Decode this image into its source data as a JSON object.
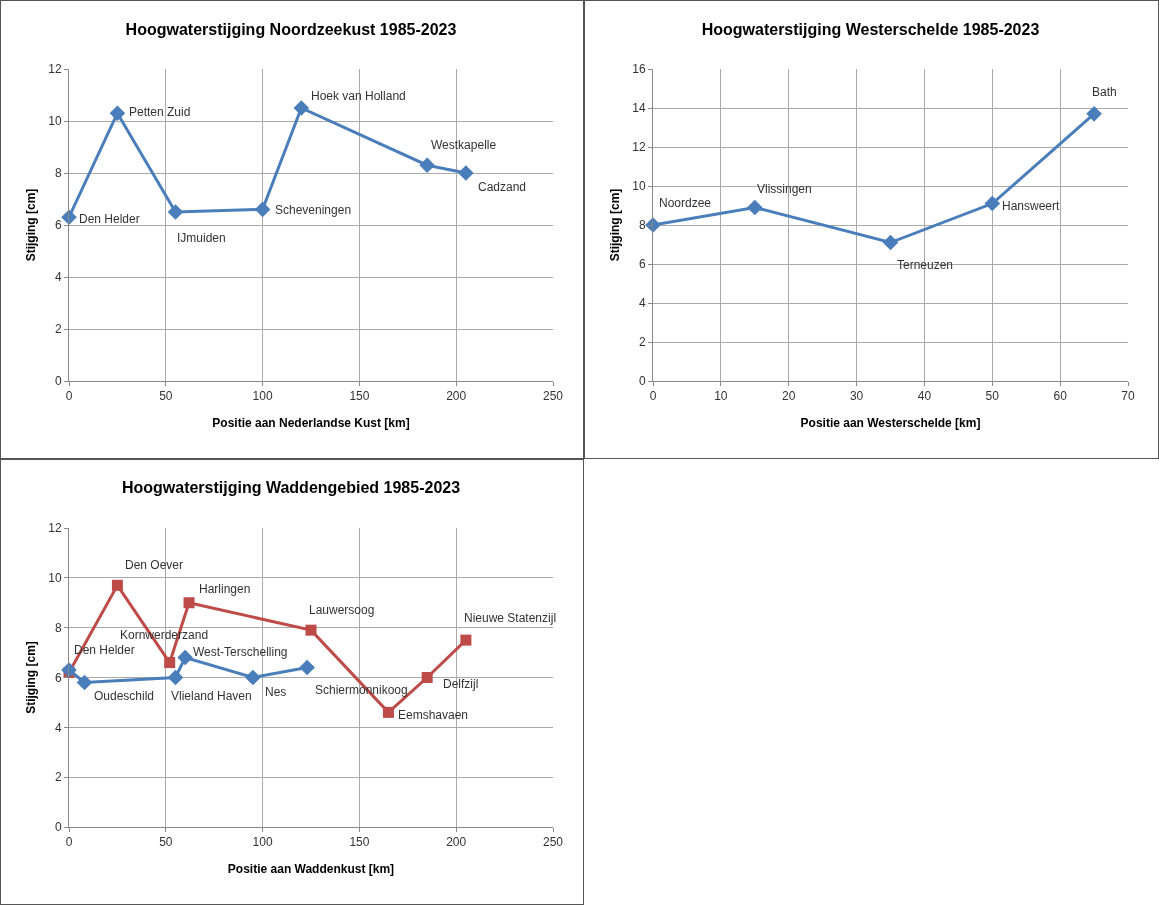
{
  "chart_data": [
    {
      "type": "line",
      "title": "Hoogwaterstijging Noordzeekust 1985-2023",
      "xlabel": "Positie aan Nederlandse Kust [km]",
      "ylabel": "Stijging [cm]",
      "xlim": [
        0,
        250
      ],
      "xticks": [
        0,
        50,
        100,
        150,
        200,
        250
      ],
      "ylim": [
        0,
        12
      ],
      "yticks": [
        0,
        2,
        4,
        6,
        8,
        10,
        12
      ],
      "grid": true,
      "series": [
        {
          "color": "#4a7ebb",
          "marker": "diamond",
          "x": [
            0,
            25,
            55,
            100,
            120,
            185,
            205
          ],
          "values": [
            6.3,
            10.3,
            6.5,
            6.6,
            10.5,
            8.3,
            8.0
          ]
        }
      ],
      "annotations": [
        {
          "text": "Den Helder",
          "x": 0,
          "y": 6.3
        },
        {
          "text": "Petten Zuid",
          "x": 25,
          "y": 10.3
        },
        {
          "text": "IJmuiden",
          "x": 55,
          "y": 6.5
        },
        {
          "text": "Scheveningen",
          "x": 100,
          "y": 6.6
        },
        {
          "text": "Hoek van Holland",
          "x": 120,
          "y": 10.5
        },
        {
          "text": "Westkapelle",
          "x": 185,
          "y": 8.3
        },
        {
          "text": "Cadzand",
          "x": 205,
          "y": 8.0
        }
      ]
    },
    {
      "type": "line",
      "title": "Hoogwaterstijging Westerschelde 1985-2023",
      "xlabel": "Positie aan Westerschelde [km]",
      "ylabel": "Stijging [cm]",
      "xlim": [
        0,
        70
      ],
      "xticks": [
        0,
        10,
        20,
        30,
        40,
        50,
        60,
        70
      ],
      "ylim": [
        0,
        16
      ],
      "yticks": [
        0,
        2,
        4,
        6,
        8,
        10,
        12,
        14,
        16
      ],
      "grid": true,
      "series": [
        {
          "color": "#4a7ebb",
          "marker": "diamond",
          "x": [
            0,
            15,
            35,
            50,
            65
          ],
          "values": [
            8.0,
            8.9,
            7.1,
            9.1,
            13.7
          ]
        }
      ],
      "annotations": [
        {
          "text": "Noordzee",
          "x": 0,
          "y": 8.0
        },
        {
          "text": "Vlissingen",
          "x": 15,
          "y": 8.9
        },
        {
          "text": "Terneuzen",
          "x": 35,
          "y": 7.1
        },
        {
          "text": "Hansweert",
          "x": 50,
          "y": 9.1
        },
        {
          "text": "Bath",
          "x": 65,
          "y": 13.7
        }
      ]
    },
    {
      "type": "line",
      "title": "Hoogwaterstijging Waddengebied 1985-2023",
      "xlabel": "Positie aan Waddenkust [km]",
      "ylabel": "Stijging [cm]",
      "xlim": [
        0,
        250
      ],
      "xticks": [
        0,
        50,
        100,
        150,
        200,
        250
      ],
      "ylim": [
        0,
        12
      ],
      "yticks": [
        0,
        2,
        4,
        6,
        8,
        10,
        12
      ],
      "grid": true,
      "series": [
        {
          "color": "#4a7ebb",
          "marker": "diamond",
          "x": [
            0,
            8,
            55,
            60,
            95,
            123
          ],
          "values": [
            6.3,
            5.8,
            6.0,
            6.8,
            6.0,
            6.4
          ]
        },
        {
          "color": "#be4b48",
          "marker": "square",
          "x": [
            0,
            25,
            52,
            62,
            125,
            165,
            185,
            205
          ],
          "values": [
            6.2,
            9.7,
            6.6,
            9.0,
            7.9,
            4.6,
            6.0,
            7.5
          ]
        }
      ],
      "annotations": [
        {
          "text": "Den Helder",
          "x": 0,
          "y": 6.3
        },
        {
          "text": "Oudeschild",
          "x": 8,
          "y": 5.8
        },
        {
          "text": "Vlieland Haven",
          "x": 55,
          "y": 6.0
        },
        {
          "text": "West-Terschelling",
          "x": 60,
          "y": 6.8
        },
        {
          "text": "Nes",
          "x": 95,
          "y": 6.0
        },
        {
          "text": "Schiermonnikoog",
          "x": 123,
          "y": 6.4
        },
        {
          "text": "Den Oever",
          "x": 25,
          "y": 9.7
        },
        {
          "text": "Kornwerderzand",
          "x": 52,
          "y": 6.6
        },
        {
          "text": "Harlingen",
          "x": 62,
          "y": 9.0
        },
        {
          "text": "Lauwersoog",
          "x": 125,
          "y": 7.9
        },
        {
          "text": "Eemshavaen",
          "x": 165,
          "y": 4.6
        },
        {
          "text": "Delfzijl",
          "x": 185,
          "y": 6.0
        },
        {
          "text": "Nieuwe Statenzijl",
          "x": 205,
          "y": 7.5
        }
      ]
    }
  ]
}
